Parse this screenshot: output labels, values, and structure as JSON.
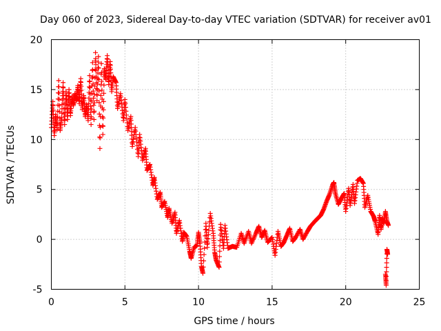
{
  "chart_data": {
    "type": "scatter",
    "title": "Day 060 of 2023, Sidereal Day-to-day VTEC variation (SDTVAR) for receiver av01",
    "xlabel": "GPS time / hours",
    "ylabel": "SDTVAR / TECUs",
    "xlim": [
      0,
      25
    ],
    "ylim": [
      -5,
      20
    ],
    "xticks": [
      0,
      5,
      10,
      15,
      20,
      25
    ],
    "yticks": [
      -5,
      0,
      5,
      10,
      15,
      20
    ],
    "grid": true,
    "marker": "+",
    "marker_color": "#ff0000",
    "series": [
      {
        "name": "SDTVAR",
        "points": [
          [
            0.0,
            11.2
          ],
          [
            0.1,
            13.8
          ],
          [
            0.2,
            10.4
          ],
          [
            0.3,
            12.5
          ],
          [
            0.4,
            11.0
          ],
          [
            0.5,
            15.9
          ],
          [
            0.6,
            10.9
          ],
          [
            0.7,
            12.2
          ],
          [
            0.8,
            15.7
          ],
          [
            0.9,
            11.5
          ],
          [
            1.0,
            14.8
          ],
          [
            1.1,
            12.0
          ],
          [
            1.2,
            15.0
          ],
          [
            1.3,
            12.4
          ],
          [
            1.4,
            14.3
          ],
          [
            1.5,
            13.4
          ],
          [
            1.6,
            14.6
          ],
          [
            1.7,
            13.9
          ],
          [
            1.8,
            15.4
          ],
          [
            1.9,
            13.6
          ],
          [
            2.0,
            16.1
          ],
          [
            2.1,
            13.0
          ],
          [
            2.2,
            14.4
          ],
          [
            2.3,
            12.3
          ],
          [
            2.4,
            13.5
          ],
          [
            2.5,
            11.9
          ],
          [
            2.6,
            16.4
          ],
          [
            2.7,
            11.5
          ],
          [
            2.8,
            17.7
          ],
          [
            2.9,
            12.0
          ],
          [
            3.0,
            18.7
          ],
          [
            3.1,
            13.9
          ],
          [
            3.2,
            18.3
          ],
          [
            3.3,
            9.1
          ],
          [
            3.4,
            17.6
          ],
          [
            3.5,
            10.5
          ],
          [
            3.6,
            17.1
          ],
          [
            3.7,
            16.0
          ],
          [
            3.8,
            18.4
          ],
          [
            3.9,
            15.5
          ],
          [
            4.0,
            17.8
          ],
          [
            4.1,
            14.8
          ],
          [
            4.2,
            16.3
          ],
          [
            4.4,
            15.7
          ],
          [
            4.5,
            13.1
          ],
          [
            4.7,
            14.6
          ],
          [
            4.9,
            11.9
          ],
          [
            5.0,
            14.0
          ],
          [
            5.2,
            10.9
          ],
          [
            5.4,
            12.3
          ],
          [
            5.5,
            9.3
          ],
          [
            5.7,
            11.2
          ],
          [
            5.9,
            8.3
          ],
          [
            6.0,
            10.5
          ],
          [
            6.2,
            7.9
          ],
          [
            6.4,
            9.1
          ],
          [
            6.5,
            6.9
          ],
          [
            6.7,
            7.5
          ],
          [
            6.9,
            5.4
          ],
          [
            7.0,
            6.2
          ],
          [
            7.2,
            4.0
          ],
          [
            7.4,
            4.7
          ],
          [
            7.5,
            3.2
          ],
          [
            7.7,
            3.8
          ],
          [
            7.9,
            2.2
          ],
          [
            8.0,
            3.1
          ],
          [
            8.2,
            1.6
          ],
          [
            8.4,
            2.7
          ],
          [
            8.5,
            0.6
          ],
          [
            8.7,
            1.9
          ],
          [
            8.9,
            -0.2
          ],
          [
            9.0,
            0.7
          ],
          [
            9.2,
            0.3
          ],
          [
            9.4,
            -1.2
          ],
          [
            9.5,
            -1.9
          ],
          [
            9.7,
            -0.8
          ],
          [
            9.9,
            -0.6
          ],
          [
            10.0,
            0.7
          ],
          [
            10.1,
            -0.4
          ],
          [
            10.2,
            -2.7
          ],
          [
            10.3,
            -3.4
          ],
          [
            10.5,
            1.6
          ],
          [
            10.6,
            -0.8
          ],
          [
            10.8,
            2.6
          ],
          [
            11.0,
            0.6
          ],
          [
            11.1,
            -1.3
          ],
          [
            11.2,
            -2.1
          ],
          [
            11.4,
            -2.8
          ],
          [
            11.5,
            1.5
          ],
          [
            11.7,
            -0.9
          ],
          [
            11.8,
            1.4
          ],
          [
            12.0,
            -0.9
          ],
          [
            12.3,
            -0.7
          ],
          [
            12.6,
            -0.8
          ],
          [
            12.9,
            0.6
          ],
          [
            13.1,
            -0.4
          ],
          [
            13.4,
            0.8
          ],
          [
            13.6,
            -0.4
          ],
          [
            13.9,
            0.6
          ],
          [
            14.1,
            1.3
          ],
          [
            14.3,
            0.2
          ],
          [
            14.5,
            0.9
          ],
          [
            14.7,
            -0.3
          ],
          [
            15.0,
            0.2
          ],
          [
            15.2,
            -1.6
          ],
          [
            15.4,
            0.8
          ],
          [
            15.6,
            -0.7
          ],
          [
            15.8,
            -0.3
          ],
          [
            16.0,
            0.4
          ],
          [
            16.2,
            1.1
          ],
          [
            16.4,
            -0.2
          ],
          [
            16.6,
            0.2
          ],
          [
            16.9,
            1.0
          ],
          [
            17.1,
            0.0
          ],
          [
            17.4,
            0.8
          ],
          [
            17.6,
            1.3
          ],
          [
            17.9,
            1.8
          ],
          [
            18.1,
            2.1
          ],
          [
            18.3,
            2.4
          ],
          [
            18.5,
            3.0
          ],
          [
            18.7,
            3.8
          ],
          [
            18.9,
            4.5
          ],
          [
            19.1,
            5.4
          ],
          [
            19.2,
            5.7
          ],
          [
            19.3,
            4.6
          ],
          [
            19.5,
            3.5
          ],
          [
            19.7,
            4.1
          ],
          [
            19.9,
            4.6
          ],
          [
            20.0,
            2.8
          ],
          [
            20.2,
            5.1
          ],
          [
            20.3,
            3.4
          ],
          [
            20.5,
            5.5
          ],
          [
            20.6,
            3.6
          ],
          [
            20.8,
            5.9
          ],
          [
            21.0,
            6.1
          ],
          [
            21.2,
            5.6
          ],
          [
            21.3,
            3.2
          ],
          [
            21.5,
            4.4
          ],
          [
            21.7,
            2.8
          ],
          [
            21.9,
            2.3
          ],
          [
            22.0,
            1.8
          ],
          [
            22.2,
            0.5
          ],
          [
            22.3,
            2.4
          ],
          [
            22.4,
            1.0
          ],
          [
            22.5,
            2.1
          ],
          [
            22.6,
            1.6
          ],
          [
            22.7,
            2.8
          ],
          [
            22.8,
            1.8
          ],
          [
            22.9,
            1.4
          ],
          [
            22.7,
            -3.5
          ],
          [
            22.75,
            -4.6
          ],
          [
            22.8,
            -1.0
          ],
          [
            22.85,
            -1.5
          ]
        ]
      }
    ]
  }
}
